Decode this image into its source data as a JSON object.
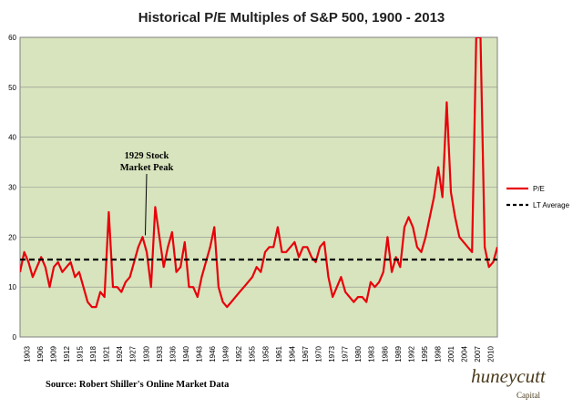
{
  "chart_data": {
    "type": "line",
    "title": "Historical P/E Multiples of S&P 500, 1900 - 2013",
    "xlabel": "",
    "ylabel": "",
    "ylim": [
      0,
      60
    ],
    "y_ticks": [
      0,
      10,
      20,
      30,
      40,
      50,
      60
    ],
    "xlim": [
      1900,
      2013
    ],
    "x_tick_labels": [
      "1903",
      "1906",
      "1909",
      "1912",
      "1915",
      "1918",
      "1921",
      "1924",
      "1927",
      "1930",
      "1933",
      "1936",
      "1940",
      "1943",
      "1946",
      "1949",
      "1952",
      "1955",
      "1958",
      "1961",
      "1964",
      "1967",
      "1970",
      "1973",
      "1977",
      "1980",
      "1983",
      "1986",
      "1989",
      "1992",
      "1995",
      "1998",
      "2001",
      "2004",
      "2007",
      "2010"
    ],
    "grid": true,
    "legend_placement": "right",
    "colors": {
      "plot_background": "#d7e4bd",
      "pe_line": "#e8000b",
      "lt_average": "#000000"
    },
    "series": [
      {
        "name": "P/E",
        "style": "solid",
        "x": [
          1900,
          1901,
          1902,
          1903,
          1904,
          1905,
          1906,
          1907,
          1908,
          1909,
          1910,
          1911,
          1912,
          1913,
          1914,
          1915,
          1916,
          1917,
          1918,
          1919,
          1920,
          1921,
          1922,
          1923,
          1924,
          1925,
          1926,
          1927,
          1928,
          1929,
          1930,
          1931,
          1932,
          1933,
          1934,
          1935,
          1936,
          1937,
          1938,
          1939,
          1940,
          1941,
          1942,
          1943,
          1944,
          1945,
          1946,
          1947,
          1948,
          1949,
          1950,
          1951,
          1952,
          1953,
          1954,
          1955,
          1956,
          1957,
          1958,
          1959,
          1960,
          1961,
          1962,
          1963,
          1964,
          1965,
          1966,
          1967,
          1968,
          1969,
          1970,
          1971,
          1972,
          1973,
          1974,
          1975,
          1976,
          1977,
          1978,
          1979,
          1980,
          1981,
          1982,
          1983,
          1984,
          1985,
          1986,
          1987,
          1988,
          1989,
          1990,
          1991,
          1992,
          1993,
          1994,
          1995,
          1996,
          1997,
          1998,
          1999,
          2000,
          2001,
          2002,
          2003,
          2004,
          2005,
          2006,
          2007,
          2008,
          2009,
          2010,
          2011,
          2012,
          2013
        ],
        "values": [
          13,
          17,
          15,
          12,
          14,
          16,
          14,
          10,
          14,
          15,
          13,
          14,
          15,
          12,
          13,
          10,
          7,
          6,
          6,
          9,
          8,
          25,
          10,
          10,
          9,
          11,
          12,
          15,
          18,
          20,
          17,
          10,
          26,
          20,
          14,
          18,
          21,
          13,
          14,
          19,
          10,
          10,
          8,
          12,
          15,
          18,
          22,
          10,
          7,
          6,
          7,
          8,
          9,
          10,
          11,
          12,
          14,
          13,
          17,
          18,
          18,
          22,
          17,
          17,
          18,
          19,
          16,
          18,
          18,
          16,
          15,
          18,
          19,
          12,
          8,
          10,
          12,
          9,
          8,
          7,
          8,
          8,
          7,
          11,
          10,
          11,
          13,
          20,
          13,
          16,
          14,
          22,
          24,
          22,
          18,
          17,
          20,
          24,
          28,
          34,
          28,
          47,
          29,
          24,
          20,
          19,
          18,
          17,
          60,
          60,
          18,
          14,
          15,
          18
        ]
      },
      {
        "name": "LT Average",
        "style": "dashed",
        "x": [
          1900,
          2013
        ],
        "values": [
          15.5,
          15.5
        ]
      }
    ],
    "annotations": [
      {
        "text_lines": [
          "1929 Stock",
          "Market Peak"
        ],
        "points_to_x": 1929,
        "points_to_y": 20
      }
    ],
    "source": "Source:  Robert Shiller's Online Market Data"
  },
  "logo": {
    "main": "huneycutt",
    "sub": "Capital"
  }
}
